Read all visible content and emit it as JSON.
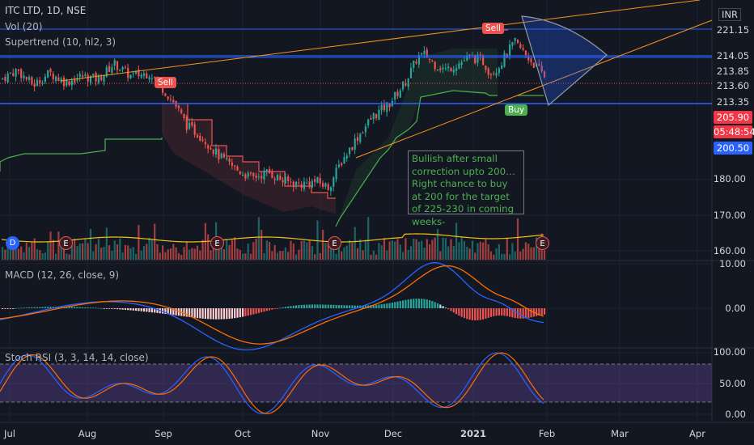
{
  "header": {
    "symbol": "ITC LTD, 1D, NSE",
    "currency": "INR",
    "vol": "Vol (20)",
    "supertrend": "Supertrend (10, hl2, 3)",
    "macd": "MACD (12, 26, close, 9)",
    "stoch": "Stoch RSI (3, 3, 14, 14, close)"
  },
  "price_axis": [
    "221.15",
    "214.05",
    "213.85",
    "213.60",
    "213.35",
    "205.90",
    "05:48:54",
    "200.50",
    "180.00",
    "170.00",
    "160.00"
  ],
  "macd_axis": [
    "10.00",
    "0.00"
  ],
  "stoch_axis": [
    "100.00",
    "50.00",
    "0.00"
  ],
  "x_axis": [
    "Jul",
    "Aug",
    "Sep",
    "Oct",
    "Nov",
    "Dec",
    "2021",
    "Feb",
    "Mar",
    "Apr"
  ],
  "signals": {
    "sell1": "Sell",
    "sell2": "Sell",
    "buy": "Buy"
  },
  "events": [
    "D",
    "E",
    "E",
    "E",
    "E"
  ],
  "note": "Bullish after small correction upto 200…Right chance to buy at 200 for the target of 225-230 in coming weeks-",
  "colors": {
    "up": "#26a69a",
    "down": "#ef5350",
    "accent": "#2962ff",
    "orange": "#f7931a",
    "stoch_band": "#7e57c2",
    "green_text": "#4caf50"
  },
  "chart_data": [
    {
      "type": "candlestick",
      "title": "ITC LTD, 1D, NSE",
      "ylim": [
        157,
        226
      ],
      "horizontal_levels": [
        221.15,
        214.05,
        213.85,
        213.6,
        213.35
      ],
      "last_price": 205.9,
      "support_level": 200.5,
      "close_approx": {
        "x": [
          "Jul",
          "Aug",
          "Sep",
          "Oct",
          "Nov",
          "Dec",
          "2021",
          "Feb"
        ],
        "values": [
          205,
          208,
          207,
          185,
          172,
          192,
          212,
          206
        ]
      }
    },
    {
      "type": "line",
      "title": "MACD (12, 26, close, 9)",
      "ylim": [
        -8,
        10
      ]
    },
    {
      "type": "line",
      "title": "Stoch RSI (3, 3, 14, 14, close)",
      "ylim": [
        0,
        100
      ]
    }
  ]
}
